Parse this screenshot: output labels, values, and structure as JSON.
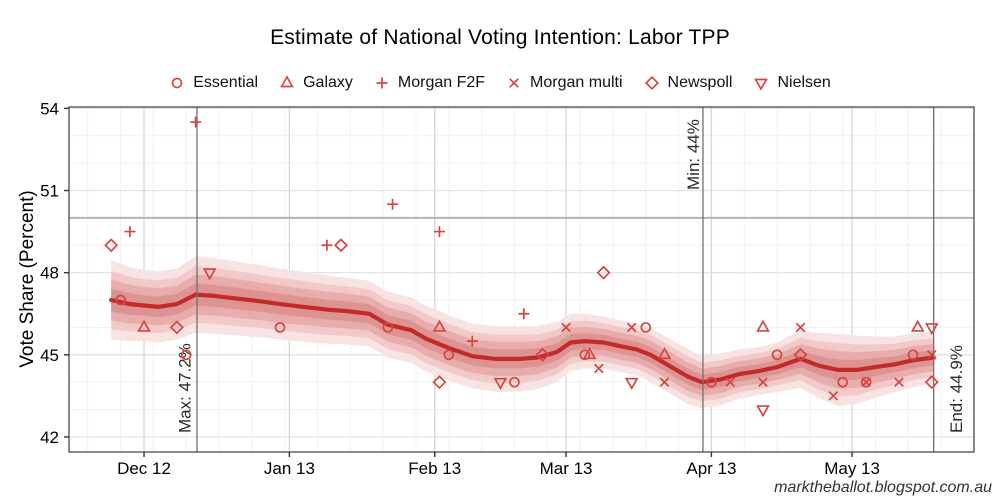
{
  "title": "Estimate of National Voting Intention: Labor TPP",
  "watermark": "marktheballot.blogspot.com.au",
  "legend": {
    "items": [
      {
        "label": "Essential",
        "marker": "circle"
      },
      {
        "label": "Galaxy",
        "marker": "triangle-up"
      },
      {
        "label": "Morgan F2F",
        "marker": "plus"
      },
      {
        "label": "Morgan multi",
        "marker": "x"
      },
      {
        "label": "Newspoll",
        "marker": "diamond"
      },
      {
        "label": "Nielsen",
        "marker": "triangle-down"
      }
    ]
  },
  "colors": {
    "marker": "#d6453e",
    "trend": "#c32b2b",
    "bands": [
      "#f8e3e3",
      "#f1c9c9",
      "#e8acac",
      "#de9393"
    ],
    "annotation_line": "#707070",
    "reference_line": "#b2b2b2",
    "grid_major_h": "#e3e3e3",
    "grid_major_v": "#d6d6d6",
    "grid_minor": "#f2f2f2",
    "panel_border": "#4a4a4a",
    "tick": "#333333",
    "text": "#000000",
    "annotation_text": "#2b2b2b"
  },
  "chart_data": {
    "type": "scatter",
    "title": "Estimate of National Voting Intention: Labor TPP",
    "xlabel": "",
    "ylabel": "Vote Share (Percent)",
    "x_axis": {
      "unit": "days since 2012-12-01",
      "ticks": [
        0,
        31,
        62,
        90,
        121,
        151
      ],
      "tick_labels": [
        "Dec 12",
        "Jan 13",
        "Feb 13",
        "Mar 13",
        "Apr 13",
        "May 13"
      ],
      "minor_grid_start_day": -12,
      "minor_grid_step_days": 7,
      "range": [
        -16,
        177
      ]
    },
    "y_axis": {
      "ticks": [
        42,
        45,
        48,
        51,
        54
      ],
      "minor_ticks": [
        43,
        44,
        46,
        47,
        49,
        50,
        52,
        53
      ],
      "range": [
        41.45,
        54.05
      ]
    },
    "grid": true,
    "legend_position": "top",
    "reference_line_y": 50,
    "annotations": [
      {
        "label": "Max: 47.2%",
        "day": 11.3
      },
      {
        "label": "Min: 44%",
        "day": 119.2
      },
      {
        "label": "End: 44.9%",
        "day": 168.4
      }
    ],
    "band_fractions": [
      1.0,
      0.74,
      0.52,
      0.29
    ],
    "trend": [
      [
        -7,
        47.0,
        1.45
      ],
      [
        -3,
        46.85,
        1.35
      ],
      [
        0,
        46.8,
        1.3
      ],
      [
        3,
        46.75,
        1.3
      ],
      [
        7,
        46.85,
        1.3
      ],
      [
        11,
        47.2,
        1.4
      ],
      [
        15,
        47.15,
        1.38
      ],
      [
        20,
        47.05,
        1.35
      ],
      [
        25,
        46.95,
        1.32
      ],
      [
        29,
        46.85,
        1.3
      ],
      [
        34,
        46.75,
        1.28
      ],
      [
        39,
        46.65,
        1.25
      ],
      [
        43,
        46.6,
        1.22
      ],
      [
        48,
        46.5,
        1.2
      ],
      [
        52,
        46.1,
        1.2
      ],
      [
        57,
        45.9,
        1.2
      ],
      [
        60,
        45.6,
        1.2
      ],
      [
        65,
        45.25,
        1.2
      ],
      [
        70,
        44.95,
        1.18
      ],
      [
        75,
        44.85,
        1.2
      ],
      [
        80,
        44.85,
        1.2
      ],
      [
        84,
        44.9,
        1.15
      ],
      [
        88,
        45.1,
        1.1
      ],
      [
        91,
        45.45,
        1.05
      ],
      [
        94,
        45.5,
        1.0
      ],
      [
        98,
        45.45,
        0.95
      ],
      [
        102,
        45.3,
        0.95
      ],
      [
        105,
        45.2,
        0.95
      ],
      [
        108,
        45.0,
        1.0
      ],
      [
        112,
        44.6,
        1.0
      ],
      [
        116,
        44.2,
        1.0
      ],
      [
        119,
        44.0,
        0.95
      ],
      [
        123,
        44.1,
        0.95
      ],
      [
        127,
        44.3,
        0.9
      ],
      [
        131,
        44.4,
        0.88
      ],
      [
        135,
        44.55,
        0.9
      ],
      [
        140,
        44.85,
        1.05
      ],
      [
        144,
        44.6,
        1.2
      ],
      [
        148,
        44.45,
        1.32
      ],
      [
        152,
        44.45,
        1.25
      ],
      [
        156,
        44.55,
        1.12
      ],
      [
        160,
        44.65,
        1.02
      ],
      [
        164,
        44.8,
        0.98
      ],
      [
        168.4,
        44.9,
        0.95
      ]
    ],
    "series": [
      {
        "name": "Essential",
        "marker": "circle",
        "points": [
          [
            -5,
            47
          ],
          [
            9,
            45
          ],
          [
            29,
            46
          ],
          [
            52,
            46
          ],
          [
            65,
            45
          ],
          [
            79,
            44
          ],
          [
            94,
            45
          ],
          [
            107,
            46
          ],
          [
            121,
            44
          ],
          [
            135,
            45
          ],
          [
            149,
            44
          ],
          [
            154,
            44
          ],
          [
            164,
            45
          ]
        ]
      },
      {
        "name": "Galaxy",
        "marker": "triangle-up",
        "points": [
          [
            0,
            46
          ],
          [
            63,
            46
          ],
          [
            95,
            45
          ],
          [
            111,
            45
          ],
          [
            132,
            46
          ],
          [
            165,
            46
          ]
        ]
      },
      {
        "name": "Morgan F2F",
        "marker": "plus",
        "points": [
          [
            -3,
            49.5
          ],
          [
            11,
            53.5
          ],
          [
            39,
            49
          ],
          [
            53,
            50.5
          ],
          [
            63,
            49.5
          ],
          [
            70,
            45.5
          ],
          [
            81,
            46.5
          ]
        ]
      },
      {
        "name": "Morgan multi",
        "marker": "x",
        "points": [
          [
            90,
            46
          ],
          [
            97,
            44.5
          ],
          [
            104,
            46
          ],
          [
            111,
            44
          ],
          [
            125,
            44
          ],
          [
            132,
            44
          ],
          [
            140,
            46
          ],
          [
            147,
            43.5
          ],
          [
            154,
            44
          ],
          [
            161,
            44
          ],
          [
            168,
            45
          ]
        ]
      },
      {
        "name": "Newspoll",
        "marker": "diamond",
        "points": [
          [
            -7,
            49
          ],
          [
            7,
            46
          ],
          [
            42,
            49
          ],
          [
            63,
            44
          ],
          [
            85,
            45
          ],
          [
            98,
            48
          ],
          [
            140,
            45
          ],
          [
            168,
            44
          ]
        ]
      },
      {
        "name": "Nielsen",
        "marker": "triangle-down",
        "points": [
          [
            14,
            48
          ],
          [
            76,
            44
          ],
          [
            104,
            44
          ],
          [
            132,
            43
          ],
          [
            168,
            46
          ]
        ]
      }
    ]
  }
}
